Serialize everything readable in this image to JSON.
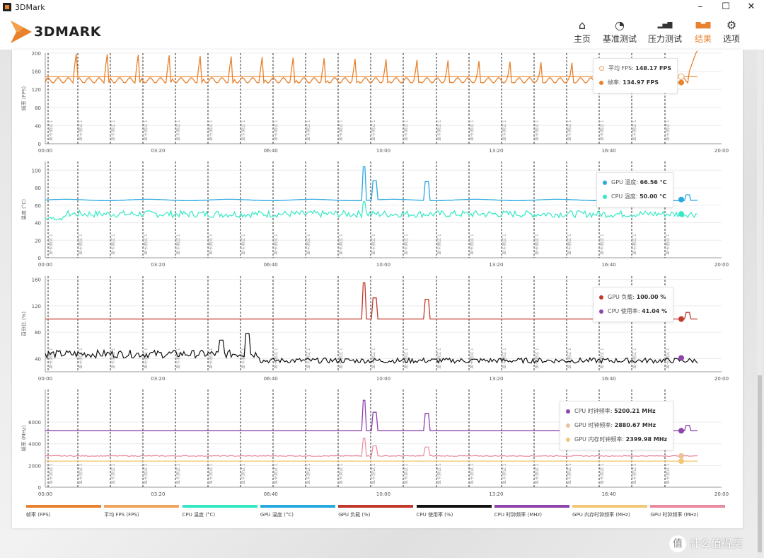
{
  "window": {
    "title": "3DMark",
    "minimize": "–",
    "maximize": "☐",
    "close": "✕"
  },
  "logo": {
    "text": "3DMARK"
  },
  "nav": [
    {
      "label": "主页",
      "icon": "home-icon"
    },
    {
      "label": "基准测试",
      "icon": "gauge-icon"
    },
    {
      "label": "压力测试",
      "icon": "bars-icon"
    },
    {
      "label": "结果",
      "icon": "results-chart-icon",
      "active": true
    },
    {
      "label": "选项",
      "icon": "gear-icon"
    }
  ],
  "colors": {
    "accent": "#e8822e",
    "fps": "#e8822e",
    "avg_fps": "#f0a55e",
    "cpu_temp": "#33e8c5",
    "gpu_temp": "#2aa9e0",
    "gpu_load": "#c0392b",
    "cpu_use": "#111111",
    "cpu_clock": "#8e44ad",
    "gpu_mem_clock": "#f0c878",
    "gpu_clock": "#e88aa0"
  },
  "marker_label": "显卡测试 1",
  "x_ticks": [
    "00:00",
    "03:20",
    "06:40",
    "10:00",
    "13:20",
    "16:40",
    "20:00"
  ],
  "chart_data": [
    {
      "type": "line",
      "ylabel": "帧率 (FPS)",
      "ylim": [
        0,
        200
      ],
      "yticks": [
        0,
        40,
        80,
        120,
        160,
        200
      ],
      "series": [
        {
          "name": "平均 FPS",
          "value": "148.17 FPS"
        },
        {
          "name": "帧率",
          "value": "134.97 FPS"
        }
      ],
      "avg": 148.17
    },
    {
      "type": "line",
      "ylabel": "温度 (°C)",
      "ylim": [
        0,
        110
      ],
      "yticks": [
        0,
        20,
        40,
        60,
        80,
        100
      ],
      "series": [
        {
          "name": "GPU 温度",
          "value": "66.56 °C"
        },
        {
          "name": "CPU 温度",
          "value": "50.00 °C"
        }
      ]
    },
    {
      "type": "line",
      "ylabel": "百分比 (%)",
      "ylim": [
        20,
        165
      ],
      "yticks": [
        40,
        80,
        120,
        160
      ],
      "series": [
        {
          "name": "GPU 负载",
          "value": "100.00 %"
        },
        {
          "name": "CPU 使用率",
          "value": "41.04 %"
        }
      ]
    },
    {
      "type": "line",
      "ylabel": "频率 (MHz)",
      "ylim": [
        0,
        9000
      ],
      "yticks": [
        0,
        2000,
        4000,
        6000
      ],
      "series": [
        {
          "name": "CPU 时钟频率",
          "value": "5200.21 MHz"
        },
        {
          "name": "GPU 时钟频率",
          "value": "2880.67 MHz"
        },
        {
          "name": "GPU 内存时钟频率",
          "value": "2399.98 MHz"
        }
      ]
    }
  ],
  "bottom_legend": [
    {
      "label": "帧率 (FPS)",
      "color": "#e8822e"
    },
    {
      "label": "平均 FPS (FPS)",
      "color": "#f0a55e"
    },
    {
      "label": "CPU 温度 (°C)",
      "color": "#33e8c5"
    },
    {
      "label": "GPU 温度 (°C)",
      "color": "#2aa9e0"
    },
    {
      "label": "GPU 负载 (%)",
      "color": "#c0392b"
    },
    {
      "label": "CPU 使用率 (%)",
      "color": "#111111"
    },
    {
      "label": "CPU 时钟频率 (MHz)",
      "color": "#8e44ad"
    },
    {
      "label": "GPU 内存时钟频率 (MHz)",
      "color": "#f0c878"
    },
    {
      "label": "GPU 时钟频率 (MHz)",
      "color": "#e88aa0"
    }
  ],
  "watermark": {
    "badge": "值",
    "text": "什么值得买"
  }
}
